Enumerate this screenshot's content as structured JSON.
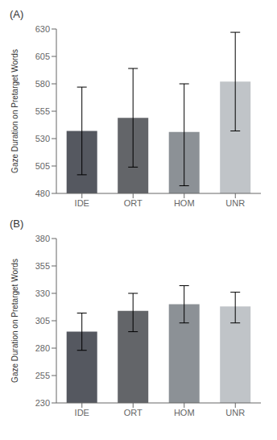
{
  "chart_data": [
    {
      "type": "bar",
      "title": "(A)",
      "categories": [
        "IDE",
        "ORT",
        "HOM",
        "UNR"
      ],
      "values": [
        537,
        549,
        536,
        582
      ],
      "errors_low": [
        40,
        45,
        49,
        45
      ],
      "errors_high": [
        40,
        45,
        44,
        45
      ],
      "ylim": [
        480,
        630
      ],
      "yticks": [
        480,
        505,
        530,
        555,
        580,
        605,
        630
      ],
      "ylabel": "Gaze Duration on Pretarget Words",
      "colors": [
        "#555860",
        "#636569",
        "#8c9196",
        "#c0c4c8"
      ],
      "grid": false
    },
    {
      "type": "bar",
      "title": "(B)",
      "categories": [
        "IDE",
        "ORT",
        "HOM",
        "UNR"
      ],
      "values": [
        295,
        314,
        320,
        318
      ],
      "errors_low": [
        17,
        19,
        17,
        15
      ],
      "errors_high": [
        17,
        16,
        17,
        13
      ],
      "ylim": [
        230,
        380
      ],
      "yticks": [
        230,
        255,
        280,
        305,
        330,
        355,
        380
      ],
      "ylabel": "Gaze Duration on Pretarget Words",
      "colors": [
        "#555860",
        "#636569",
        "#8c9196",
        "#c0c4c8"
      ],
      "grid": false
    }
  ]
}
